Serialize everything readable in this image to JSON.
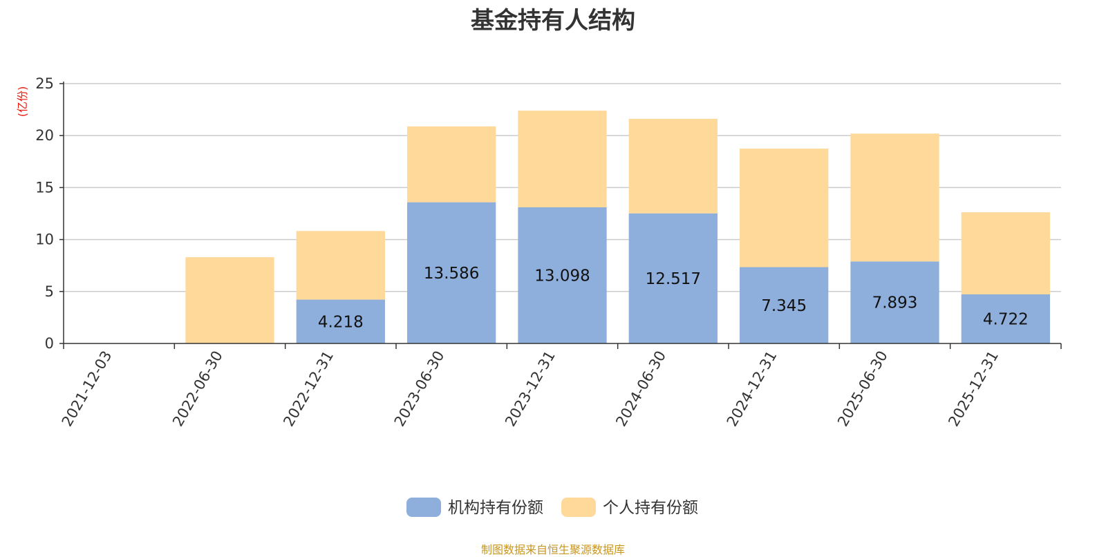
{
  "title": "基金持有人结构",
  "source": "制图数据来自恒生聚源数据库",
  "chart_data": {
    "type": "bar",
    "stacked": true,
    "title": "基金持有人结构",
    "ylabel": "(亿份)",
    "ylim": [
      0,
      25
    ],
    "yticks": [
      0,
      5,
      10,
      15,
      20,
      25
    ],
    "grid": true,
    "legend_position": "bottom-center",
    "categories": [
      "2021-12-03",
      "2022-06-30",
      "2022-12-31",
      "2023-06-30",
      "2023-12-31",
      "2024-06-30",
      "2024-12-31",
      "2025-06-30",
      "2025-12-31"
    ],
    "series": [
      {
        "name": "机构持有份额",
        "color": "#8eaedb",
        "values": [
          0,
          0,
          4.218,
          13.586,
          13.098,
          12.517,
          7.345,
          7.893,
          4.722
        ],
        "labels": [
          "",
          "",
          "4.218",
          "13.586",
          "13.098",
          "12.517",
          "7.345",
          "7.893",
          "4.722"
        ]
      },
      {
        "name": "个人持有份额",
        "color": "#fed999",
        "values": [
          0,
          8.3,
          6.6,
          7.3,
          9.3,
          9.1,
          11.4,
          12.3,
          7.9
        ]
      }
    ]
  }
}
